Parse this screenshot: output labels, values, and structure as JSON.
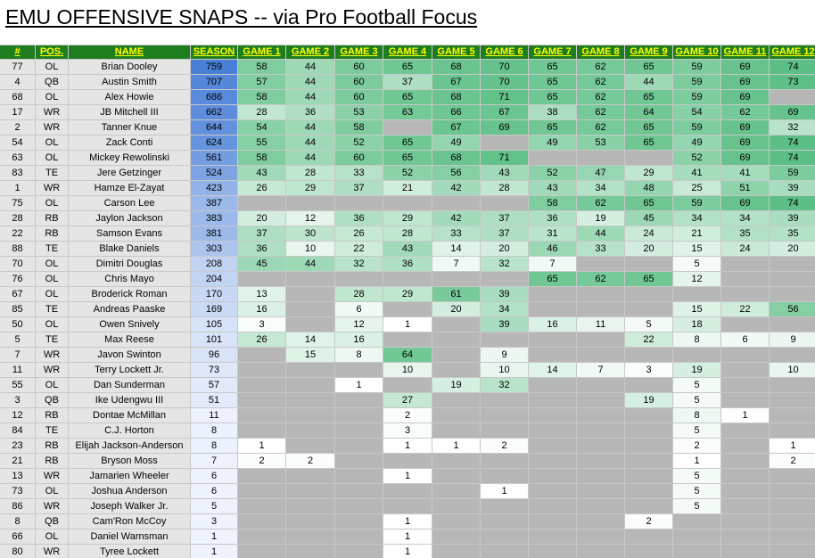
{
  "title": "EMU OFFENSIVE SNAPS -- via Pro Football Focus",
  "headers": [
    "#",
    "POS.",
    "NAME",
    "SEASON",
    "GAME 1",
    "GAME 2",
    "GAME 3",
    "GAME 4",
    "GAME 5",
    "GAME 6",
    "GAME 7",
    "GAME 8",
    "GAME 9",
    "GAME 10",
    "GAME 11",
    "GAME 12"
  ],
  "colors": {
    "header_bg": "#1e7d1e",
    "header_text": "#ffff00",
    "info_bg": "#e5e5e5",
    "no_play_bg": "#b7b7b7",
    "season_dark": "#4a7fd8",
    "season_light": "#eef3fd",
    "game_dark": "#5cbf85",
    "game_light": "#ffffff"
  },
  "players": [
    {
      "num": "77",
      "pos": "OL",
      "name": "Brian Dooley",
      "season": 759,
      "games": [
        58,
        44,
        60,
        65,
        68,
        70,
        65,
        62,
        65,
        59,
        69,
        74
      ]
    },
    {
      "num": "4",
      "pos": "QB",
      "name": "Austin Smith",
      "season": 707,
      "games": [
        57,
        44,
        60,
        37,
        67,
        70,
        65,
        62,
        44,
        59,
        69,
        73
      ]
    },
    {
      "num": "68",
      "pos": "OL",
      "name": "Alex Howie",
      "season": 686,
      "games": [
        58,
        44,
        60,
        65,
        68,
        71,
        65,
        62,
        65,
        59,
        69,
        null
      ]
    },
    {
      "num": "17",
      "pos": "WR",
      "name": "JB Mitchell III",
      "season": 662,
      "games": [
        28,
        36,
        53,
        63,
        66,
        67,
        38,
        62,
        64,
        54,
        62,
        69
      ]
    },
    {
      "num": "2",
      "pos": "WR",
      "name": "Tanner Knue",
      "season": 644,
      "games": [
        54,
        44,
        58,
        null,
        67,
        69,
        65,
        62,
        65,
        59,
        69,
        32
      ]
    },
    {
      "num": "54",
      "pos": "OL",
      "name": "Zack Conti",
      "season": 624,
      "games": [
        55,
        44,
        52,
        65,
        49,
        null,
        49,
        53,
        65,
        49,
        69,
        74
      ]
    },
    {
      "num": "63",
      "pos": "OL",
      "name": "Mickey Rewolinski",
      "season": 561,
      "games": [
        58,
        44,
        60,
        65,
        68,
        71,
        null,
        null,
        null,
        52,
        69,
        74
      ]
    },
    {
      "num": "83",
      "pos": "TE",
      "name": "Jere Getzinger",
      "season": 524,
      "games": [
        43,
        28,
        33,
        52,
        56,
        43,
        52,
        47,
        29,
        41,
        41,
        59
      ]
    },
    {
      "num": "1",
      "pos": "WR",
      "name": "Hamze El-Zayat",
      "season": 423,
      "games": [
        26,
        29,
        37,
        21,
        42,
        28,
        43,
        34,
        48,
        25,
        51,
        39
      ]
    },
    {
      "num": "75",
      "pos": "OL",
      "name": "Carson Lee",
      "season": 387,
      "games": [
        null,
        null,
        null,
        null,
        null,
        null,
        58,
        62,
        65,
        59,
        69,
        74
      ]
    },
    {
      "num": "28",
      "pos": "RB",
      "name": "Jaylon Jackson",
      "season": 383,
      "games": [
        20,
        12,
        36,
        29,
        42,
        37,
        36,
        19,
        45,
        34,
        34,
        39
      ]
    },
    {
      "num": "22",
      "pos": "RB",
      "name": "Samson Evans",
      "season": 381,
      "games": [
        37,
        30,
        26,
        28,
        33,
        37,
        31,
        44,
        24,
        21,
        35,
        35
      ]
    },
    {
      "num": "88",
      "pos": "TE",
      "name": "Blake Daniels",
      "season": 303,
      "games": [
        36,
        10,
        22,
        43,
        14,
        20,
        46,
        33,
        20,
        15,
        24,
        20
      ]
    },
    {
      "num": "70",
      "pos": "OL",
      "name": "Dimitri Douglas",
      "season": 208,
      "games": [
        45,
        44,
        32,
        36,
        7,
        32,
        7,
        null,
        null,
        5,
        null,
        null
      ]
    },
    {
      "num": "76",
      "pos": "OL",
      "name": "Chris Mayo",
      "season": 204,
      "games": [
        null,
        null,
        null,
        null,
        null,
        null,
        65,
        62,
        65,
        12,
        null,
        null
      ]
    },
    {
      "num": "67",
      "pos": "OL",
      "name": "Broderick Roman",
      "season": 170,
      "games": [
        13,
        null,
        28,
        29,
        61,
        39,
        null,
        null,
        null,
        null,
        null,
        null
      ]
    },
    {
      "num": "85",
      "pos": "TE",
      "name": "Andreas Paaske",
      "season": 169,
      "games": [
        16,
        null,
        6,
        null,
        20,
        34,
        null,
        null,
        null,
        15,
        22,
        56
      ]
    },
    {
      "num": "50",
      "pos": "OL",
      "name": "Owen Snively",
      "season": 105,
      "games": [
        3,
        null,
        12,
        1,
        null,
        39,
        16,
        11,
        5,
        18,
        null,
        null
      ]
    },
    {
      "num": "5",
      "pos": "TE",
      "name": "Max Reese",
      "season": 101,
      "games": [
        26,
        14,
        16,
        null,
        null,
        null,
        null,
        null,
        22,
        8,
        6,
        9
      ]
    },
    {
      "num": "7",
      "pos": "WR",
      "name": "Javon Swinton",
      "season": 96,
      "games": [
        null,
        15,
        8,
        64,
        null,
        9,
        null,
        null,
        null,
        null,
        null,
        null
      ]
    },
    {
      "num": "11",
      "pos": "WR",
      "name": "Terry Lockett Jr.",
      "season": 73,
      "games": [
        null,
        null,
        null,
        10,
        null,
        10,
        14,
        7,
        3,
        19,
        null,
        10
      ]
    },
    {
      "num": "55",
      "pos": "OL",
      "name": "Dan Sunderman",
      "season": 57,
      "games": [
        null,
        null,
        1,
        null,
        19,
        32,
        null,
        null,
        null,
        5,
        null,
        null
      ]
    },
    {
      "num": "3",
      "pos": "QB",
      "name": "Ike Udengwu III",
      "season": 51,
      "games": [
        null,
        null,
        null,
        27,
        null,
        null,
        null,
        null,
        19,
        5,
        null,
        null
      ]
    },
    {
      "num": "12",
      "pos": "RB",
      "name": "Dontae McMillan",
      "season": 11,
      "games": [
        null,
        null,
        null,
        2,
        null,
        null,
        null,
        null,
        null,
        8,
        1,
        null
      ]
    },
    {
      "num": "84",
      "pos": "TE",
      "name": "C.J. Horton",
      "season": 8,
      "games": [
        null,
        null,
        null,
        3,
        null,
        null,
        null,
        null,
        null,
        5,
        null,
        null
      ]
    },
    {
      "num": "23",
      "pos": "RB",
      "name": "Elijah Jackson-Anderson",
      "season": 8,
      "games": [
        1,
        null,
        null,
        1,
        1,
        2,
        null,
        null,
        null,
        2,
        null,
        1
      ]
    },
    {
      "num": "21",
      "pos": "RB",
      "name": "Bryson Moss",
      "season": 7,
      "games": [
        2,
        2,
        null,
        null,
        null,
        null,
        null,
        null,
        null,
        1,
        null,
        2
      ]
    },
    {
      "num": "13",
      "pos": "WR",
      "name": "Jamarien Wheeler",
      "season": 6,
      "games": [
        null,
        null,
        null,
        1,
        null,
        null,
        null,
        null,
        null,
        5,
        null,
        null
      ]
    },
    {
      "num": "73",
      "pos": "OL",
      "name": "Joshua Anderson",
      "season": 6,
      "games": [
        null,
        null,
        null,
        null,
        null,
        1,
        null,
        null,
        null,
        5,
        null,
        null
      ]
    },
    {
      "num": "86",
      "pos": "WR",
      "name": "Joseph Walker Jr.",
      "season": 5,
      "games": [
        null,
        null,
        null,
        null,
        null,
        null,
        null,
        null,
        null,
        5,
        null,
        null
      ]
    },
    {
      "num": "8",
      "pos": "QB",
      "name": "Cam'Ron McCoy",
      "season": 3,
      "games": [
        null,
        null,
        null,
        1,
        null,
        null,
        null,
        null,
        2,
        null,
        null,
        null
      ]
    },
    {
      "num": "66",
      "pos": "OL",
      "name": "Daniel Warnsman",
      "season": 1,
      "games": [
        null,
        null,
        null,
        1,
        null,
        null,
        null,
        null,
        null,
        null,
        null,
        null
      ]
    },
    {
      "num": "80",
      "pos": "WR",
      "name": "Tyree Lockett",
      "season": 1,
      "games": [
        null,
        null,
        null,
        1,
        null,
        null,
        null,
        null,
        null,
        null,
        null,
        null
      ]
    }
  ]
}
